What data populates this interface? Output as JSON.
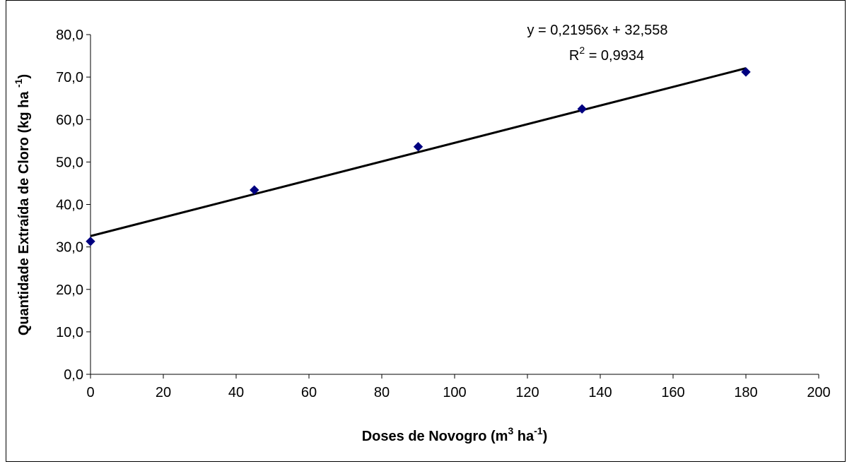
{
  "chart_data": {
    "type": "scatter",
    "x": [
      0,
      45,
      90,
      135,
      180
    ],
    "y": [
      31.3,
      43.4,
      53.6,
      62.5,
      71.2
    ],
    "marker_color": "#000080",
    "trendline": {
      "slope": 0.21956,
      "intercept": 32.558,
      "x_range": [
        0,
        180
      ],
      "color": "#000000"
    },
    "annotations": {
      "equation": "y = 0,21956x + 32,558",
      "r2_prefix": "R",
      "r2_sup": "2",
      "r2_value": " = 0,9934"
    },
    "xlabel": {
      "prefix": "Doses de Novogro (m",
      "sup1": "3",
      "middle": " ha",
      "sup2": "-1",
      "suffix": ")"
    },
    "ylabel": {
      "prefix": "Quantidade Extraída de Cloro (kg ha ",
      "sup": "-1",
      "suffix": ")"
    },
    "xlim": [
      0,
      200
    ],
    "ylim": [
      0,
      80
    ],
    "x_ticks": [
      "0",
      "20",
      "40",
      "60",
      "80",
      "100",
      "120",
      "140",
      "160",
      "180",
      "200"
    ],
    "y_ticks": [
      "0,0",
      "10,0",
      "20,0",
      "30,0",
      "40,0",
      "50,0",
      "60,0",
      "70,0",
      "80,0"
    ],
    "grid": false,
    "legend": "none"
  }
}
